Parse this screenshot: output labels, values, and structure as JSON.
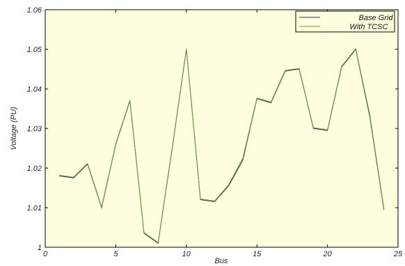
{
  "chart_data": {
    "type": "line",
    "xlabel": "Bus",
    "ylabel": "Voltage (PU)",
    "xlim": [
      0,
      25
    ],
    "ylim": [
      1,
      1.06
    ],
    "x_ticks": [
      0,
      5,
      10,
      15,
      20,
      25
    ],
    "y_ticks": [
      1,
      1.01,
      1.02,
      1.03,
      1.04,
      1.05,
      1.06
    ],
    "grid": false,
    "legend_position": "top-right",
    "plot_background": "#ffffe0",
    "x": [
      1,
      2,
      3,
      4,
      5,
      6,
      7,
      8,
      9,
      10,
      11,
      12,
      13,
      14,
      15,
      16,
      17,
      18,
      19,
      20,
      21,
      22,
      23,
      24
    ],
    "series": [
      {
        "name": "Base Grid",
        "color": "#2a2a5a",
        "values": [
          1.018,
          1.0175,
          1.021,
          1.01,
          1.026,
          1.037,
          1.0035,
          1.001,
          1.025,
          1.05,
          1.012,
          1.0115,
          1.0155,
          1.022,
          1.0375,
          1.0365,
          1.0445,
          1.045,
          1.03,
          1.0295,
          1.0455,
          1.05,
          1.033,
          1.0095
        ]
      },
      {
        "name": "With TCSC",
        "color": "#6aa03a",
        "values": [
          1.0182,
          1.0177,
          1.0212,
          1.0102,
          1.0262,
          1.0372,
          1.0037,
          1.0012,
          1.0252,
          1.0502,
          1.0122,
          1.0117,
          1.0158,
          1.0225,
          1.0377,
          1.0367,
          1.0447,
          1.0452,
          1.0302,
          1.0297,
          1.0457,
          1.0502,
          1.0335,
          1.0098
        ]
      }
    ]
  }
}
